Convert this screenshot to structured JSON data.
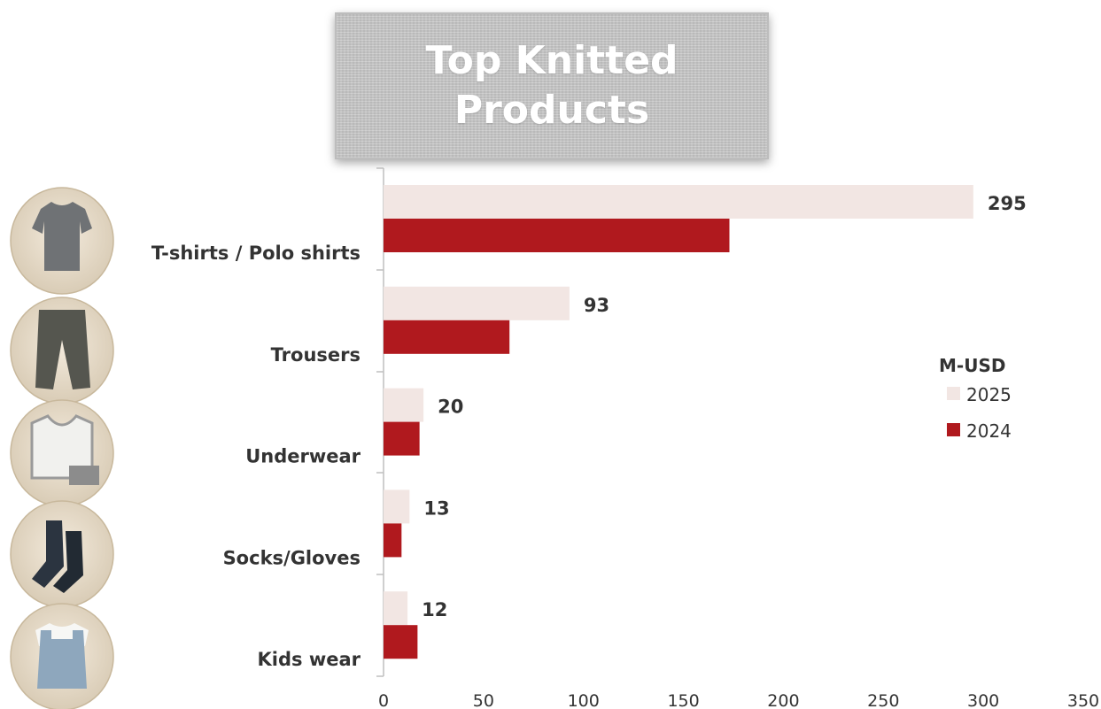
{
  "chart_data": {
    "type": "bar",
    "orientation": "horizontal",
    "title": "Top Knitted Products",
    "categories": [
      "T-shirts / Polo shirts",
      "Trousers",
      "Underwear",
      "Socks/Gloves",
      "Kids wear"
    ],
    "series": [
      {
        "name": "2025",
        "values": [
          295,
          93,
          20,
          13,
          12
        ],
        "color": "#f2e6e3"
      },
      {
        "name": "2024",
        "values": [
          173,
          63,
          18,
          9,
          17
        ],
        "color": "#b0191e"
      }
    ],
    "data_labels": [
      "295",
      "93",
      "20",
      "13",
      "12"
    ],
    "xlim": [
      0,
      350
    ],
    "xticks": [
      0,
      50,
      100,
      150,
      200,
      250,
      300,
      350
    ],
    "legend": {
      "title": "M-USD",
      "placement": "right"
    },
    "grid": false
  },
  "icons": [
    "t-shirt-icon",
    "trousers-icon",
    "underwear-icon",
    "socks-icon",
    "kids-wear-icon"
  ]
}
